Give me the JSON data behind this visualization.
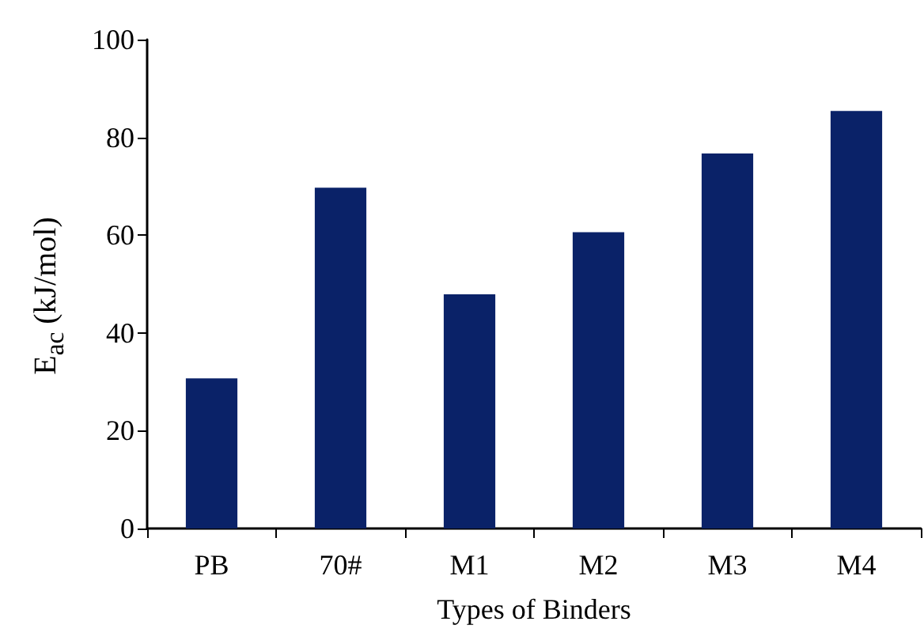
{
  "chart_data": {
    "type": "bar",
    "xlabel": "Types of Binders",
    "ylabel": "E$_{ac}$ (kJ/mol)",
    "categories": [
      "PB",
      "70#",
      "M1",
      "M2",
      "M3",
      "M4"
    ],
    "values": [
      30.7,
      69.7,
      47.9,
      60.6,
      76.7,
      85.4
    ],
    "color": "#0a2268",
    "ylim": [
      0,
      100
    ],
    "yticks": [
      0,
      20,
      40,
      60,
      80,
      100
    ],
    "grid": false
  }
}
